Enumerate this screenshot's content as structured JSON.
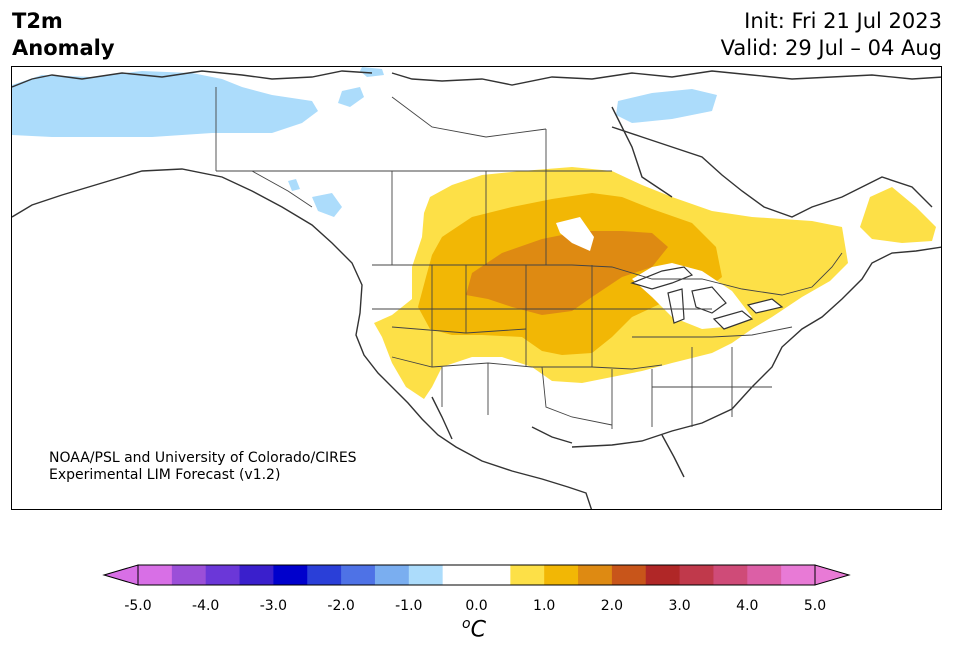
{
  "title": {
    "line1": "T2m",
    "line2": "Anomaly"
  },
  "info": {
    "init": "Init: Fri 21 Jul 2023",
    "valid": "Valid: 29 Jul – 04 Aug"
  },
  "credit": {
    "line1": "NOAA/PSL and University of Colorado/CIRES",
    "line2": "Experimental LIM Forecast (v1.2)"
  },
  "colorbar": {
    "unit_base": "C",
    "unit_sup": "o",
    "ticks": [
      "-5.0",
      "-4.0",
      "-3.0",
      "-2.0",
      "-1.0",
      "0.0",
      "1.0",
      "2.0",
      "3.0",
      "4.0",
      "5.0"
    ],
    "colors": [
      "#d86fe6",
      "#9b4fd8",
      "#6b37d8",
      "#3a1fcc",
      "#0000cc",
      "#2a3fd8",
      "#4e72e6",
      "#7aaef0",
      "#acdcfb",
      "#ffffff",
      "#ffffff",
      "#fde047",
      "#f2b705",
      "#de8a12",
      "#c8551a",
      "#b02727",
      "#c0394b",
      "#cf4b78",
      "#dc5fa6",
      "#e87ad6"
    ]
  },
  "map_colors": {
    "cold_weak": "#acdcfb",
    "warm_1": "#fde047",
    "warm_2": "#f2b705",
    "warm_3": "#de8a12",
    "land_line": "#333333",
    "border_line": "#444444"
  }
}
